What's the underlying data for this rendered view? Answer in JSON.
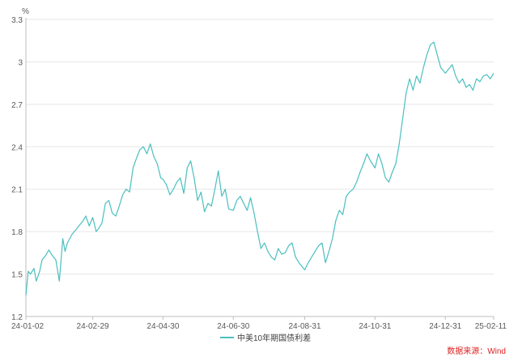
{
  "chart_data": {
    "type": "line",
    "y_unit": "%",
    "ylim": [
      1.2,
      3.3
    ],
    "yticks": [
      1.2,
      1.5,
      1.8,
      2.1,
      2.4,
      2.7,
      3,
      3.3
    ],
    "ytick_labels": [
      "1.2",
      "1.5",
      "1.8",
      "2.1",
      "2.4",
      "2.7",
      "3",
      "3.3"
    ],
    "xlim": [
      "2024-01-02",
      "2025-02-11"
    ],
    "xticks": [
      "2024-01-02",
      "2024-02-29",
      "2024-04-30",
      "2024-06-30",
      "2024-08-31",
      "2024-10-31",
      "2024-12-31",
      "2025-02-11"
    ],
    "xtick_labels": [
      "24-01-02",
      "24-02-29",
      "24-04-30",
      "24-06-30",
      "24-08-31",
      "24-10-31",
      "24-12-31",
      "25-02-11"
    ],
    "grid": "horizontal",
    "legend_position": "bottom",
    "line_color": "#4bbfbf",
    "series": [
      {
        "name": "中美10年期国债利差",
        "x": [
          "2024-01-02",
          "2024-01-04",
          "2024-01-06",
          "2024-01-09",
          "2024-01-11",
          "2024-01-14",
          "2024-01-16",
          "2024-01-19",
          "2024-01-22",
          "2024-01-25",
          "2024-01-28",
          "2024-01-31",
          "2024-02-03",
          "2024-02-05",
          "2024-02-07",
          "2024-02-09",
          "2024-02-11",
          "2024-02-14",
          "2024-02-17",
          "2024-02-20",
          "2024-02-23",
          "2024-02-26",
          "2024-02-29",
          "2024-03-03",
          "2024-03-05",
          "2024-03-08",
          "2024-03-11",
          "2024-03-14",
          "2024-03-17",
          "2024-03-20",
          "2024-03-23",
          "2024-03-26",
          "2024-03-29",
          "2024-04-01",
          "2024-04-04",
          "2024-04-07",
          "2024-04-10",
          "2024-04-13",
          "2024-04-16",
          "2024-04-19",
          "2024-04-22",
          "2024-04-25",
          "2024-04-28",
          "2024-04-30",
          "2024-05-03",
          "2024-05-06",
          "2024-05-09",
          "2024-05-12",
          "2024-05-15",
          "2024-05-18",
          "2024-05-21",
          "2024-05-24",
          "2024-05-27",
          "2024-05-30",
          "2024-06-02",
          "2024-06-05",
          "2024-06-08",
          "2024-06-11",
          "2024-06-14",
          "2024-06-17",
          "2024-06-20",
          "2024-06-23",
          "2024-06-26",
          "2024-06-30",
          "2024-07-03",
          "2024-07-06",
          "2024-07-09",
          "2024-07-12",
          "2024-07-15",
          "2024-07-18",
          "2024-07-21",
          "2024-07-24",
          "2024-07-27",
          "2024-07-30",
          "2024-08-02",
          "2024-08-05",
          "2024-08-08",
          "2024-08-11",
          "2024-08-14",
          "2024-08-17",
          "2024-08-20",
          "2024-08-23",
          "2024-08-26",
          "2024-08-29",
          "2024-08-31",
          "2024-09-03",
          "2024-09-06",
          "2024-09-09",
          "2024-09-12",
          "2024-09-15",
          "2024-09-18",
          "2024-09-21",
          "2024-09-24",
          "2024-09-27",
          "2024-09-30",
          "2024-10-03",
          "2024-10-06",
          "2024-10-09",
          "2024-10-12",
          "2024-10-15",
          "2024-10-18",
          "2024-10-21",
          "2024-10-24",
          "2024-10-27",
          "2024-10-31",
          "2024-11-03",
          "2024-11-06",
          "2024-11-09",
          "2024-11-12",
          "2024-11-15",
          "2024-11-18",
          "2024-11-21",
          "2024-11-24",
          "2024-11-27",
          "2024-11-30",
          "2024-12-03",
          "2024-12-06",
          "2024-12-09",
          "2024-12-12",
          "2024-12-15",
          "2024-12-18",
          "2024-12-21",
          "2024-12-24",
          "2024-12-27",
          "2024-12-31",
          "2025-01-03",
          "2025-01-06",
          "2025-01-09",
          "2025-01-12",
          "2025-01-15",
          "2025-01-18",
          "2025-01-21",
          "2025-01-24",
          "2025-01-27",
          "2025-01-30",
          "2025-02-02",
          "2025-02-05",
          "2025-02-08",
          "2025-02-11"
        ],
        "y": [
          1.35,
          1.52,
          1.5,
          1.54,
          1.45,
          1.52,
          1.6,
          1.63,
          1.67,
          1.63,
          1.6,
          1.45,
          1.75,
          1.66,
          1.72,
          1.75,
          1.78,
          1.81,
          1.84,
          1.87,
          1.91,
          1.84,
          1.9,
          1.8,
          1.82,
          1.86,
          2.0,
          2.02,
          1.93,
          1.91,
          1.98,
          2.06,
          2.1,
          2.08,
          2.25,
          2.32,
          2.38,
          2.4,
          2.35,
          2.42,
          2.33,
          2.28,
          2.18,
          2.17,
          2.13,
          2.06,
          2.1,
          2.15,
          2.18,
          2.07,
          2.25,
          2.3,
          2.18,
          2.02,
          2.08,
          1.94,
          2.0,
          1.98,
          2.1,
          2.23,
          2.05,
          2.1,
          1.96,
          1.95,
          2.02,
          2.05,
          2.0,
          1.95,
          2.04,
          1.93,
          1.8,
          1.68,
          1.72,
          1.66,
          1.62,
          1.6,
          1.68,
          1.64,
          1.65,
          1.7,
          1.72,
          1.62,
          1.58,
          1.55,
          1.53,
          1.58,
          1.62,
          1.66,
          1.7,
          1.72,
          1.58,
          1.66,
          1.75,
          1.88,
          1.95,
          1.92,
          2.05,
          2.08,
          2.1,
          2.15,
          2.22,
          2.28,
          2.35,
          2.3,
          2.25,
          2.35,
          2.28,
          2.18,
          2.15,
          2.22,
          2.28,
          2.42,
          2.6,
          2.78,
          2.88,
          2.8,
          2.9,
          2.85,
          2.96,
          3.05,
          3.12,
          3.14,
          3.05,
          2.96,
          2.92,
          2.95,
          2.98,
          2.9,
          2.85,
          2.88,
          2.82,
          2.84,
          2.8,
          2.88,
          2.86,
          2.9,
          2.91,
          2.88,
          2.92
        ]
      }
    ],
    "source_text": "数据来源：Wind"
  }
}
